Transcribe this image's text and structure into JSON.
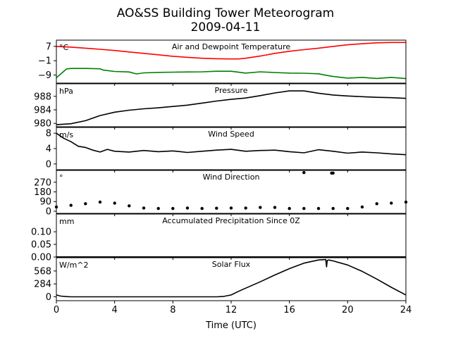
{
  "figure": {
    "title_line1": "AO&SS Building Tower Meteorogram",
    "title_line2": "2009-04-11",
    "xlabel": "Time (UTC)",
    "xticks": [
      "0",
      "4",
      "8",
      "12",
      "16",
      "20",
      "24"
    ]
  },
  "chart_data": [
    {
      "type": "line",
      "title": "Air and Dewpoint Temperature",
      "unit": "°C",
      "xlim": [
        0,
        24
      ],
      "ylim": [
        -13.5,
        10.5
      ],
      "yticks": [
        7,
        -1,
        -9
      ],
      "ytick_labels": [
        "7",
        "−1",
        "−9"
      ],
      "series": [
        {
          "color": "#ff0000",
          "x": [
            0,
            1,
            2,
            3,
            4,
            5,
            6,
            7,
            8,
            9,
            10,
            11,
            12,
            12.5,
            13,
            14,
            15,
            16,
            17,
            18,
            19,
            20,
            21,
            22,
            23,
            24
          ],
          "y": [
            7.0,
            6.6,
            6.0,
            5.4,
            4.7,
            3.9,
            3.1,
            2.3,
            1.5,
            0.9,
            0.4,
            0.1,
            0.0,
            0.0,
            0.4,
            1.6,
            3.1,
            4.3,
            5.2,
            6.0,
            7.0,
            7.9,
            8.5,
            9.0,
            9.2,
            9.2
          ]
        },
        {
          "color": "#008000",
          "x": [
            0,
            0.7,
            1,
            2,
            3,
            3.2,
            4,
            5,
            5.5,
            6,
            7,
            8,
            9,
            10,
            11,
            12,
            13,
            14,
            15,
            16,
            17,
            18,
            18.5,
            19,
            20,
            21,
            22,
            23,
            24
          ],
          "y": [
            -10.5,
            -5.6,
            -5.3,
            -5.3,
            -5.5,
            -6.2,
            -7.0,
            -7.3,
            -8.4,
            -7.8,
            -7.5,
            -7.4,
            -7.3,
            -7.2,
            -6.9,
            -6.9,
            -7.9,
            -7.2,
            -7.6,
            -7.9,
            -8.0,
            -8.3,
            -9.1,
            -9.8,
            -10.7,
            -10.3,
            -10.9,
            -10.3,
            -11.0
          ]
        }
      ]
    },
    {
      "type": "line",
      "title": "Pressure",
      "unit": "hPa",
      "xlim": [
        0,
        24
      ],
      "ylim": [
        979,
        991.7
      ],
      "yticks": [
        988,
        984,
        980
      ],
      "ytick_labels": [
        "988",
        "984",
        "980"
      ],
      "series": [
        {
          "color": "#000000",
          "x": [
            0,
            1,
            2,
            3,
            4,
            5,
            6,
            7,
            8,
            9,
            10,
            11,
            12,
            13,
            14,
            15,
            16,
            17,
            18,
            19,
            20,
            21,
            22,
            23,
            24
          ],
          "y": [
            979.6,
            979.9,
            980.8,
            982.3,
            983.3,
            983.9,
            984.3,
            984.6,
            985.0,
            985.4,
            986.0,
            986.6,
            987.1,
            987.5,
            988.2,
            989.0,
            989.6,
            989.6,
            988.9,
            988.4,
            988.1,
            987.9,
            987.7,
            987.6,
            987.4
          ]
        }
      ]
    },
    {
      "type": "line",
      "title": "Wind Speed",
      "unit": "m/s",
      "xlim": [
        0,
        24
      ],
      "ylim": [
        -1.5,
        9.5
      ],
      "yticks": [
        8,
        4,
        0
      ],
      "ytick_labels": [
        "8",
        "4",
        "0"
      ],
      "series": [
        {
          "color": "#000000",
          "x": [
            0,
            0.5,
            1,
            1.5,
            2,
            2.5,
            3,
            3.5,
            4,
            5,
            6,
            7,
            8,
            9,
            10,
            11,
            12,
            13,
            14,
            15,
            16,
            17,
            18,
            19,
            20,
            21,
            22,
            23,
            24
          ],
          "y": [
            8.0,
            6.7,
            5.8,
            4.6,
            4.3,
            3.6,
            3.1,
            3.8,
            3.3,
            3.1,
            3.5,
            3.2,
            3.4,
            3.0,
            3.3,
            3.6,
            3.8,
            3.3,
            3.5,
            3.6,
            3.2,
            2.9,
            3.7,
            3.3,
            2.8,
            3.1,
            2.9,
            2.6,
            2.4
          ]
        }
      ]
    },
    {
      "type": "scatter",
      "title": "Wind Direction",
      "unit": "°",
      "xlim": [
        0,
        24
      ],
      "ylim": [
        -20,
        380
      ],
      "yticks": [
        270,
        180,
        90,
        0
      ],
      "ytick_labels": [
        "270",
        "180",
        "90",
        "0"
      ],
      "series": [
        {
          "color": "#000000",
          "x": [
            0,
            1,
            2,
            3,
            4,
            5,
            6,
            7,
            8,
            9,
            10,
            11,
            12,
            13,
            14,
            15,
            16,
            17,
            18,
            19,
            20,
            21,
            22,
            23,
            24
          ],
          "y": [
            40,
            55,
            70,
            85,
            75,
            50,
            30,
            25,
            25,
            30,
            25,
            28,
            30,
            30,
            35,
            35,
            25,
            25,
            25,
            25,
            25,
            40,
            70,
            75,
            85
          ]
        },
        {
          "color": "#000000",
          "x": [
            17.0,
            18.9,
            19.0
          ],
          "y": [
            360,
            355,
            355
          ]
        }
      ]
    },
    {
      "type": "line",
      "title": "Accumulated Precipitation Since 0Z",
      "unit": "mm",
      "xlim": [
        0,
        24
      ],
      "ylim": [
        0,
        0.17
      ],
      "yticks": [
        0.1,
        0.05,
        0.0
      ],
      "ytick_labels": [
        "0.10",
        "0.05",
        "0.00"
      ],
      "series": [
        {
          "color": "#000000",
          "x": [
            0,
            24
          ],
          "y": [
            0,
            0
          ]
        }
      ]
    },
    {
      "type": "line",
      "title": "Solar Flux",
      "unit": "W/m^2",
      "xlim": [
        0,
        24
      ],
      "ylim": [
        -85,
        860
      ],
      "yticks": [
        568,
        284,
        0
      ],
      "ytick_labels": [
        "568",
        "284",
        "0"
      ],
      "series": [
        {
          "color": "#000000",
          "x": [
            0,
            0.3,
            0.7,
            1,
            4,
            8,
            11,
            11.5,
            12,
            12.5,
            13,
            14,
            15,
            16,
            17,
            18,
            18.5,
            18.55,
            18.6,
            18.7,
            19,
            20,
            21,
            22,
            23,
            24
          ],
          "y": [
            40,
            15,
            5,
            0,
            0,
            0,
            0,
            10,
            40,
            120,
            190,
            330,
            480,
            620,
            740,
            810,
            820,
            660,
            800,
            810,
            790,
            700,
            560,
            390,
            210,
            40
          ]
        }
      ]
    }
  ]
}
